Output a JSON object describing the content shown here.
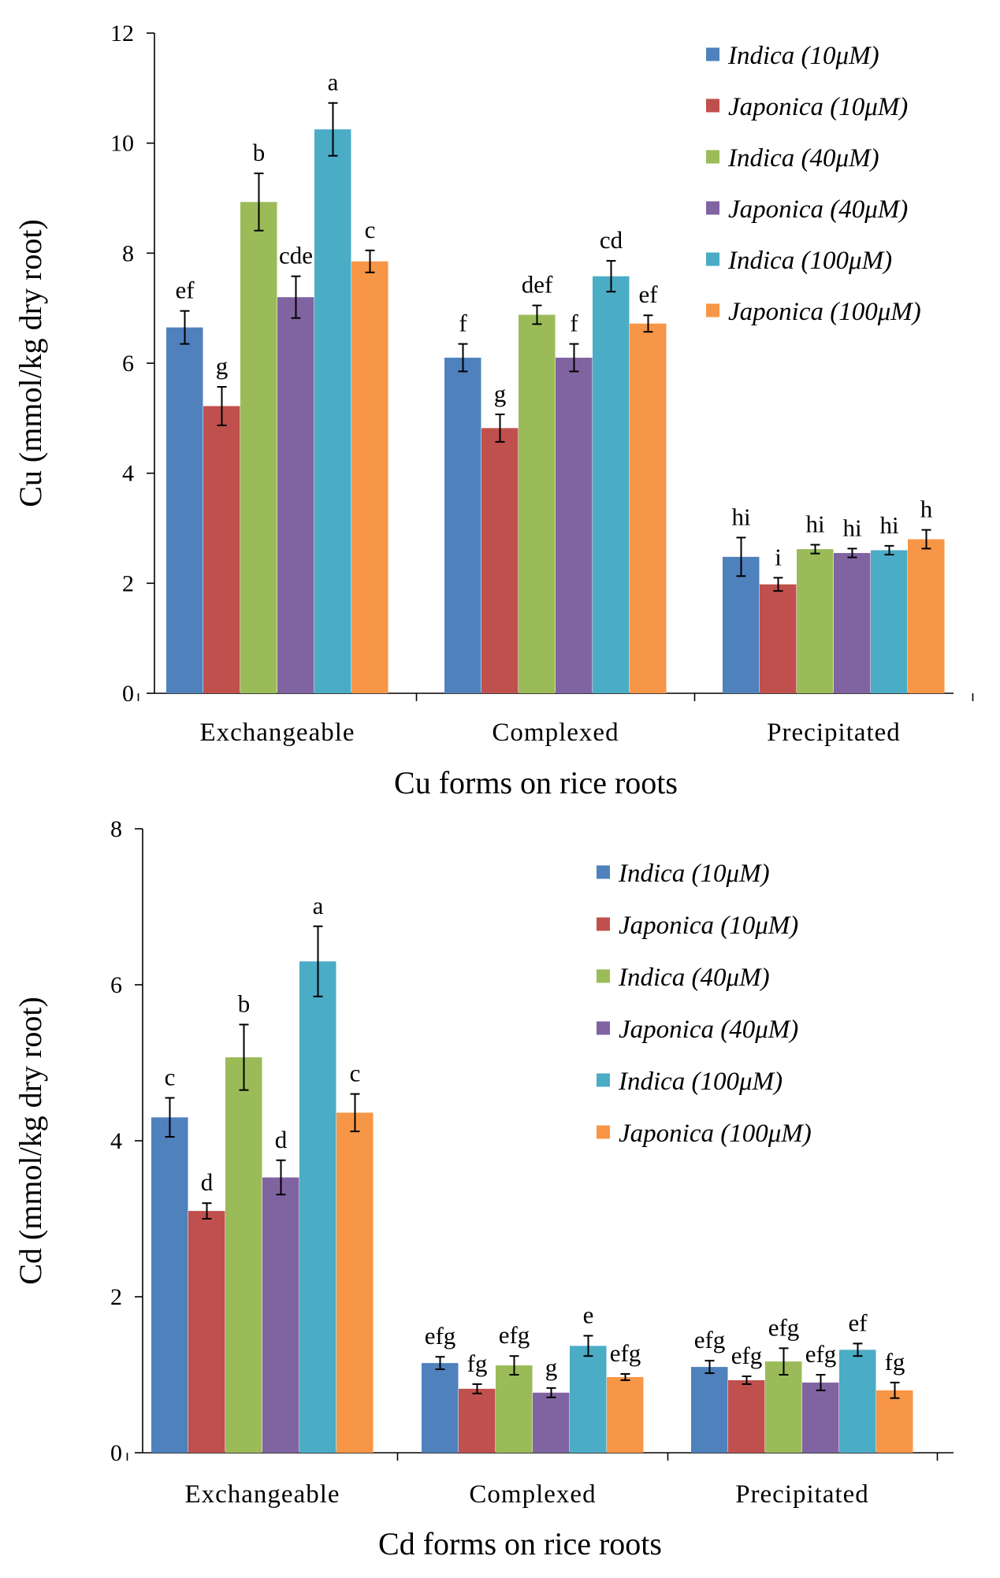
{
  "chart_data": [
    {
      "type": "bar",
      "title": "",
      "xlabel": "Cu forms on rice roots",
      "ylabel": "Cu (mmol/kg dry root)",
      "ylim": [
        0,
        12
      ],
      "yticks": [
        0,
        2,
        4,
        6,
        8,
        10,
        12
      ],
      "grid": false,
      "legend_position": "top-right",
      "categories": [
        "Exchangeable",
        "Complexed",
        "Precipitated"
      ],
      "series": [
        {
          "name": "Indica (10μM)",
          "color": "#4F81BD",
          "values": [
            6.65,
            6.1,
            2.48
          ],
          "errors": [
            0.3,
            0.25,
            0.35
          ],
          "labels": [
            "ef",
            "f",
            "hi"
          ]
        },
        {
          "name": "Japonica (10μM)",
          "color": "#C0504D",
          "values": [
            5.22,
            4.82,
            1.98
          ],
          "errors": [
            0.35,
            0.25,
            0.12
          ],
          "labels": [
            "g",
            "g",
            "i"
          ]
        },
        {
          "name": "Indica (40μM)",
          "color": "#9BBB59",
          "values": [
            8.93,
            6.88,
            2.62
          ],
          "errors": [
            0.52,
            0.17,
            0.08
          ],
          "labels": [
            "b",
            "def",
            "hi"
          ]
        },
        {
          "name": "Japonica (40μM)",
          "color": "#8064A2",
          "values": [
            7.2,
            6.1,
            2.55
          ],
          "errors": [
            0.38,
            0.25,
            0.08
          ],
          "labels": [
            "cde",
            "f",
            "hi"
          ]
        },
        {
          "name": "Indica (100μM)",
          "color": "#4BACC6",
          "values": [
            10.25,
            7.58,
            2.6
          ],
          "errors": [
            0.48,
            0.28,
            0.08
          ],
          "labels": [
            "a",
            "cd",
            "hi"
          ]
        },
        {
          "name": "Japonica (100μM)",
          "color": "#F79646",
          "values": [
            7.85,
            6.72,
            2.8
          ],
          "errors": [
            0.2,
            0.15,
            0.17
          ],
          "labels": [
            "c",
            "ef",
            "h"
          ]
        }
      ]
    },
    {
      "type": "bar",
      "title": "",
      "xlabel": "Cd forms on rice roots",
      "ylabel": "Cd (mmol/kg dry root)",
      "ylim": [
        0,
        8
      ],
      "yticks": [
        0,
        2,
        4,
        6,
        8
      ],
      "grid": false,
      "legend_position": "top-right",
      "categories": [
        "Exchangeable",
        "Complexed",
        "Precipitated"
      ],
      "series": [
        {
          "name": "Indica (10μM)",
          "color": "#4F81BD",
          "values": [
            4.3,
            1.15,
            1.1
          ],
          "errors": [
            0.25,
            0.08,
            0.08
          ],
          "labels": [
            "c",
            "efg",
            "efg"
          ]
        },
        {
          "name": "Japonica (10μM)",
          "color": "#C0504D",
          "values": [
            3.1,
            0.82,
            0.93
          ],
          "errors": [
            0.1,
            0.06,
            0.05
          ],
          "labels": [
            "d",
            "fg",
            "efg"
          ]
        },
        {
          "name": "Indica (40μM)",
          "color": "#9BBB59",
          "values": [
            5.07,
            1.12,
            1.17
          ],
          "errors": [
            0.42,
            0.12,
            0.17
          ],
          "labels": [
            "b",
            "efg",
            "efg"
          ]
        },
        {
          "name": "Japonica (40μM)",
          "color": "#8064A2",
          "values": [
            3.53,
            0.77,
            0.9
          ],
          "errors": [
            0.22,
            0.06,
            0.1
          ],
          "labels": [
            "d",
            "g",
            "efg"
          ]
        },
        {
          "name": "Indica (100μM)",
          "color": "#4BACC6",
          "values": [
            6.3,
            1.37,
            1.32
          ],
          "errors": [
            0.45,
            0.13,
            0.08
          ],
          "labels": [
            "a",
            "e",
            "ef"
          ]
        },
        {
          "name": "Japonica (100μM)",
          "color": "#F79646",
          "values": [
            4.36,
            0.97,
            0.8
          ],
          "errors": [
            0.24,
            0.04,
            0.1
          ],
          "labels": [
            "c",
            "efg",
            "fg"
          ]
        }
      ]
    }
  ]
}
